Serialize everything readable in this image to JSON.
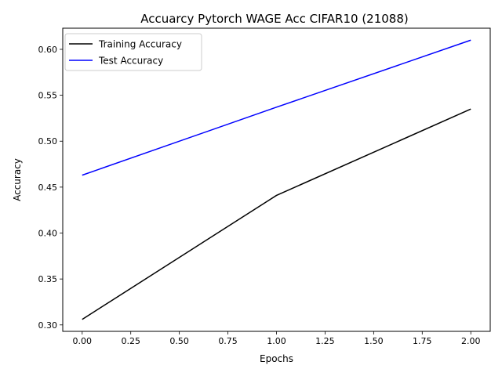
{
  "chart_data": {
    "type": "line",
    "title": "Accuarcy Pytorch WAGE Acc CIFAR10 (21088)",
    "xlabel": "Epochs",
    "ylabel": "Accuracy",
    "xlim": [
      -0.1,
      2.1
    ],
    "ylim": [
      0.293,
      0.623
    ],
    "xticks": [
      0.0,
      0.25,
      0.5,
      0.75,
      1.0,
      1.25,
      1.5,
      1.75,
      2.0
    ],
    "xtick_labels": [
      "0.00",
      "0.25",
      "0.50",
      "0.75",
      "1.00",
      "1.25",
      "1.50",
      "1.75",
      "2.00"
    ],
    "yticks": [
      0.3,
      0.35,
      0.4,
      0.45,
      0.5,
      0.55,
      0.6
    ],
    "ytick_labels": [
      "0.30",
      "0.35",
      "0.40",
      "0.45",
      "0.50",
      "0.55",
      "0.60"
    ],
    "grid": false,
    "legend_position": "top-left",
    "series": [
      {
        "name": "Training Accuracy",
        "color": "#000000",
        "x": [
          0,
          1,
          2
        ],
        "y": [
          0.306,
          0.441,
          0.535
        ]
      },
      {
        "name": "Test Accuracy",
        "color": "#0000ff",
        "x": [
          0,
          1,
          2
        ],
        "y": [
          0.463,
          0.537,
          0.61
        ]
      }
    ]
  }
}
